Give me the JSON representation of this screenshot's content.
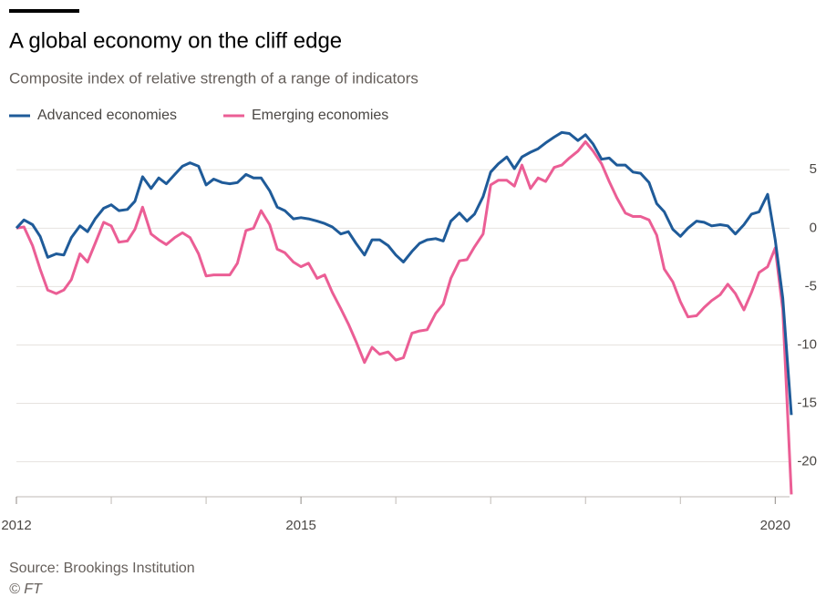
{
  "chart_data": {
    "type": "line",
    "title": "A global economy on the cliff edge",
    "subtitle": "Composite index of relative strength of a range of indicators",
    "source": "Source: Brookings Institution",
    "credit": "© FT",
    "x": [
      2012,
      2012.08,
      2012.17,
      2012.25,
      2012.33,
      2012.42,
      2012.5,
      2012.58,
      2012.67,
      2012.75,
      2012.83,
      2012.92,
      2013,
      2013.08,
      2013.17,
      2013.25,
      2013.33,
      2013.42,
      2013.5,
      2013.58,
      2013.67,
      2013.75,
      2013.83,
      2013.92,
      2014,
      2014.08,
      2014.17,
      2014.25,
      2014.33,
      2014.42,
      2014.5,
      2014.58,
      2014.67,
      2014.75,
      2014.83,
      2014.92,
      2015,
      2015.08,
      2015.17,
      2015.25,
      2015.33,
      2015.42,
      2015.5,
      2015.58,
      2015.67,
      2015.75,
      2015.83,
      2015.92,
      2016,
      2016.08,
      2016.17,
      2016.25,
      2016.33,
      2016.42,
      2016.5,
      2016.58,
      2016.67,
      2016.75,
      2016.83,
      2016.92,
      2017,
      2017.08,
      2017.17,
      2017.25,
      2017.33,
      2017.42,
      2017.5,
      2017.58,
      2017.67,
      2017.75,
      2017.83,
      2017.92,
      2018,
      2018.08,
      2018.17,
      2018.25,
      2018.33,
      2018.42,
      2018.5,
      2018.58,
      2018.67,
      2018.75,
      2018.83,
      2018.92,
      2019,
      2019.08,
      2019.17,
      2019.25,
      2019.33,
      2019.42,
      2019.5,
      2019.58,
      2019.67,
      2019.75,
      2019.83,
      2019.92,
      2020,
      2020.08,
      2020.17
    ],
    "series": [
      {
        "name": "Advanced economies",
        "color": "#1f5b99",
        "values": [
          0,
          0.7,
          0.3,
          -0.7,
          -2.5,
          -2.2,
          -2.3,
          -0.8,
          0.2,
          -0.3,
          0.8,
          1.7,
          2.0,
          1.5,
          1.6,
          2.3,
          4.4,
          3.4,
          4.3,
          3.8,
          4.6,
          5.3,
          5.6,
          5.3,
          3.7,
          4.2,
          3.9,
          3.8,
          3.9,
          4.6,
          4.3,
          4.3,
          3.2,
          1.8,
          1.5,
          0.8,
          0.9,
          0.8,
          0.6,
          0.4,
          0.1,
          -0.5,
          -0.3,
          -1.3,
          -2.3,
          -1.0,
          -1.0,
          -1.5,
          -2.3,
          -2.9,
          -2.0,
          -1.3,
          -1.0,
          -0.9,
          -1.1,
          0.6,
          1.3,
          0.6,
          1.2,
          2.7,
          4.8,
          5.5,
          6.1,
          5.1,
          6.1,
          6.5,
          6.8,
          7.3,
          7.8,
          8.2,
          8.1,
          7.5,
          8.0,
          7.2,
          5.9,
          6.0,
          5.4,
          5.4,
          4.8,
          4.7,
          3.9,
          2.1,
          1.4,
          -0.1,
          -0.7,
          0.0,
          0.6,
          0.5,
          0.2,
          0.3,
          0.2,
          -0.5,
          0.3,
          1.2,
          1.4,
          2.9,
          -1.0,
          -6.0,
          -16.0
        ]
      },
      {
        "name": "Emerging economies",
        "color": "#eb5e95",
        "values": [
          0,
          0.1,
          -1.5,
          -3.5,
          -5.3,
          -5.6,
          -5.3,
          -4.4,
          -2.2,
          -2.9,
          -1.3,
          0.5,
          0.2,
          -1.2,
          -1.1,
          -0.1,
          1.8,
          -0.5,
          -1.0,
          -1.4,
          -0.8,
          -0.4,
          -0.8,
          -2.2,
          -4.1,
          -4.0,
          -4.0,
          -4.0,
          -3.0,
          -0.2,
          0.0,
          1.5,
          0.3,
          -1.8,
          -2.1,
          -2.9,
          -3.3,
          -3.0,
          -4.3,
          -4.0,
          -5.5,
          -6.9,
          -8.2,
          -9.7,
          -11.5,
          -10.2,
          -10.8,
          -10.6,
          -11.3,
          -11.1,
          -9.0,
          -8.8,
          -8.7,
          -7.3,
          -6.5,
          -4.3,
          -2.8,
          -2.7,
          -1.6,
          -0.5,
          3.7,
          4.1,
          4.1,
          3.6,
          5.4,
          3.4,
          4.3,
          4.0,
          5.2,
          5.4,
          6.0,
          6.6,
          7.4,
          6.6,
          5.5,
          4.0,
          2.6,
          1.3,
          1.0,
          1.0,
          0.7,
          -0.6,
          -3.5,
          -4.6,
          -6.3,
          -7.6,
          -7.5,
          -6.8,
          -6.2,
          -5.7,
          -4.8,
          -5.6,
          -7.0,
          -5.5,
          -3.8,
          -3.3,
          -1.7,
          -7.0,
          -22.8
        ]
      }
    ],
    "xlim": [
      2012,
      2020.17
    ],
    "xticks": [
      2012,
      2015,
      2020
    ],
    "xminorticks": [
      2013,
      2014,
      2016,
      2017,
      2018,
      2019
    ],
    "ylim": [
      -23,
      9
    ],
    "yticks": [
      5,
      0,
      -5,
      -10,
      -15,
      -20
    ],
    "grid": true
  }
}
